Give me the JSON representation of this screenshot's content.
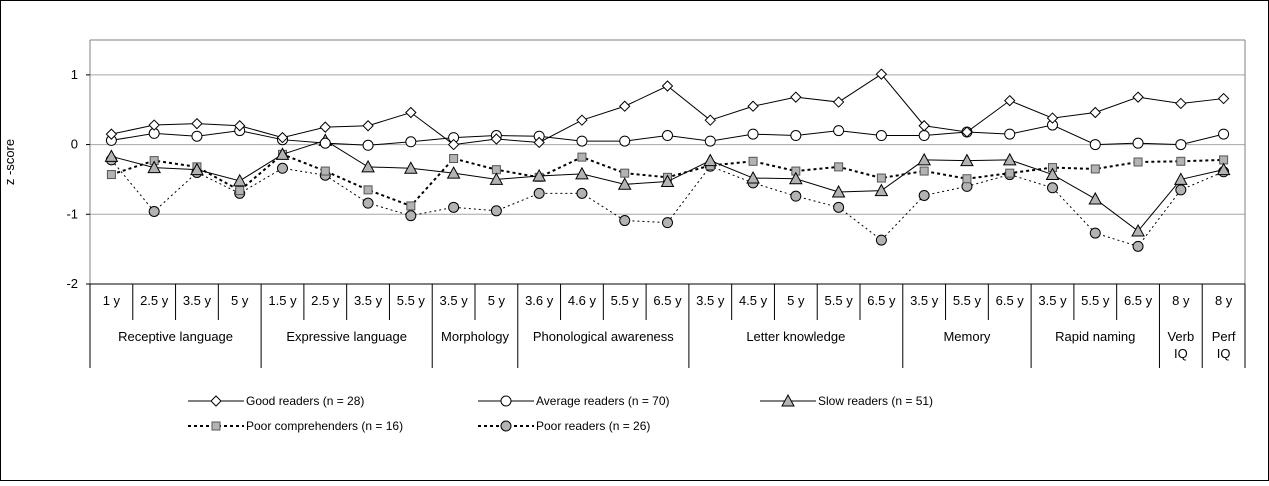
{
  "chart_data": {
    "type": "line",
    "ylabel": "z -score",
    "ylim": [
      -2,
      1.5
    ],
    "yticks": [
      1,
      0,
      -1,
      -2
    ],
    "grid": true,
    "legend_position": "bottom",
    "categories": [
      "1 y",
      "2.5 y",
      "3.5 y",
      "5 y",
      "1.5 y",
      "2.5 y",
      "3.5 y",
      "5.5 y",
      "3.5 y",
      "5 y",
      "3.6 y",
      "4.6 y",
      "5.5 y",
      "6.5 y",
      "3.5 y",
      "4.5 y",
      "5 y",
      "5.5 y",
      "6.5 y",
      "3.5 y",
      "5.5 y",
      "6.5 y",
      "3.5 y",
      "5.5 y",
      "6.5 y",
      "8 y",
      "8 y"
    ],
    "groups": [
      {
        "label": "Receptive language",
        "start": 0,
        "count": 4
      },
      {
        "label": "Expressive language",
        "start": 4,
        "count": 4
      },
      {
        "label": "Morphology",
        "start": 8,
        "count": 2
      },
      {
        "label": "Phonological awareness",
        "start": 10,
        "count": 4
      },
      {
        "label": "Letter knowledge",
        "start": 14,
        "count": 5
      },
      {
        "label": "Memory",
        "start": 19,
        "count": 3
      },
      {
        "label": "Rapid naming",
        "start": 22,
        "count": 3
      },
      {
        "label": "Verb\nIQ",
        "start": 25,
        "count": 1
      },
      {
        "label": "Perf\nIQ",
        "start": 26,
        "count": 1
      }
    ],
    "series": [
      {
        "name": "Good readers (n = 28)",
        "marker": "diamond",
        "dashed": false,
        "fill": "#ffffff",
        "values": [
          0.15,
          0.28,
          0.3,
          0.27,
          0.1,
          0.25,
          0.27,
          0.46,
          0.0,
          0.08,
          0.03,
          0.35,
          0.55,
          0.84,
          0.35,
          0.55,
          0.68,
          0.61,
          1.01,
          0.27,
          0.18,
          0.63,
          0.38,
          0.46,
          0.68,
          0.59,
          0.66
        ]
      },
      {
        "name": "Average readers (n = 70)",
        "marker": "circle",
        "dashed": false,
        "fill": "#ffffff",
        "values": [
          0.06,
          0.16,
          0.12,
          0.2,
          0.07,
          0.02,
          -0.01,
          0.04,
          0.1,
          0.13,
          0.12,
          0.05,
          0.05,
          0.13,
          0.05,
          0.15,
          0.13,
          0.2,
          0.13,
          0.13,
          0.18,
          0.15,
          0.28,
          0.0,
          0.02,
          0.0,
          0.15
        ]
      },
      {
        "name": "Slow readers (n = 51)",
        "marker": "triangle",
        "dashed": false,
        "fill": "#b3b3b3",
        "values": [
          -0.17,
          -0.33,
          -0.36,
          -0.52,
          -0.14,
          0.06,
          -0.32,
          -0.34,
          -0.41,
          -0.5,
          -0.45,
          -0.42,
          -0.57,
          -0.53,
          -0.23,
          -0.48,
          -0.49,
          -0.68,
          -0.66,
          -0.22,
          -0.23,
          -0.22,
          -0.43,
          -0.78,
          -1.24,
          -0.5,
          -0.36
        ]
      },
      {
        "name": "Poor comprehenders (n = 16)",
        "marker": "square",
        "dashed": true,
        "fill": "#b3b3b3",
        "values": [
          -0.43,
          -0.23,
          -0.32,
          -0.66,
          -0.14,
          -0.38,
          -0.65,
          -0.88,
          -0.2,
          -0.36,
          -0.47,
          -0.18,
          -0.41,
          -0.47,
          -0.3,
          -0.24,
          -0.38,
          -0.32,
          -0.48,
          -0.38,
          -0.49,
          -0.41,
          -0.33,
          -0.35,
          -0.25,
          -0.24,
          -0.22
        ]
      },
      {
        "name": "Poor readers (n = 26)",
        "marker": "circle",
        "dashed": true,
        "fill": "#b3b3b3",
        "values": [
          -0.22,
          -0.96,
          -0.4,
          -0.7,
          -0.34,
          -0.44,
          -0.84,
          -1.02,
          -0.9,
          -0.95,
          -0.7,
          -0.7,
          -1.09,
          -1.12,
          -0.31,
          -0.55,
          -0.74,
          -0.9,
          -1.37,
          -0.73,
          -0.6,
          -0.43,
          -0.62,
          -1.27,
          -1.46,
          -0.65,
          -0.39
        ]
      }
    ]
  }
}
